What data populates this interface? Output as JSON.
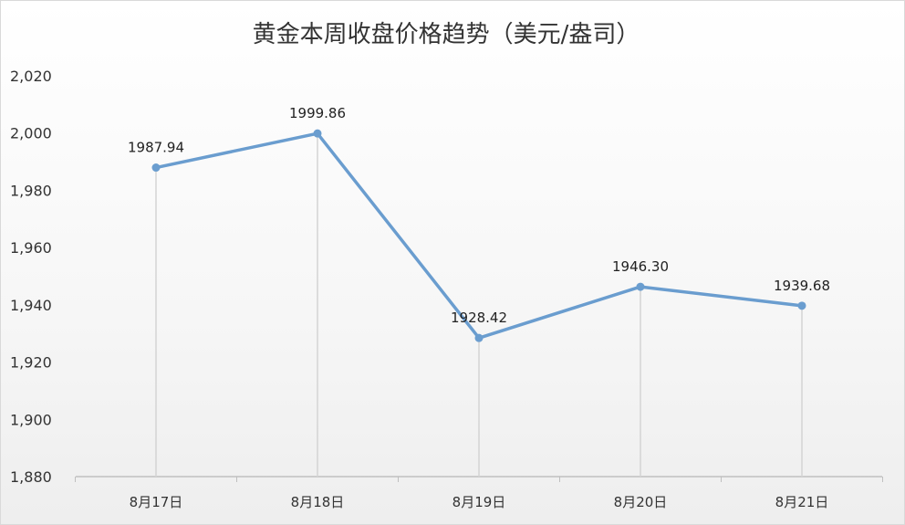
{
  "chart_data": {
    "type": "line",
    "title": "黄金本周收盘价格趋势（美元/盎司）",
    "categories": [
      "8月17日",
      "8月18日",
      "8月19日",
      "8月20日",
      "8月21日"
    ],
    "series": [
      {
        "values": [
          1987.94,
          1999.86,
          1928.42,
          1946.3,
          1939.68
        ]
      }
    ],
    "data_labels": [
      "1987.94",
      "1999.86",
      "1928.42",
      "1946.30",
      "1939.68"
    ],
    "yticks": [
      "2,020",
      "2,000",
      "1,980",
      "1,960",
      "1,940",
      "1,920",
      "1,900",
      "1,880"
    ],
    "ylim": [
      1880,
      2020
    ],
    "ystep": 20,
    "grid": false,
    "drop_lines": true,
    "line_color": "#6a9dcf",
    "drop_line_color": "#d4d4d4",
    "axis_color": "#bfbfbf"
  }
}
